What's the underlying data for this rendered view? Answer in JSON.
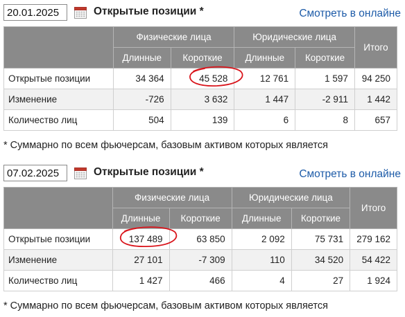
{
  "sections": [
    {
      "date": "20.01.2025",
      "title": "Открытые позиции *",
      "link": "Смотреть в онлайне",
      "headers": {
        "individuals": "Физические лица",
        "legal": "Юридические лица",
        "total": "Итого",
        "long": "Длинные",
        "short": "Короткие"
      },
      "rows": [
        {
          "label": "Открытые позиции",
          "values": [
            "34 364",
            "45 528",
            "12 761",
            "1 597",
            "94 250"
          ]
        },
        {
          "label": "Изменение",
          "values": [
            "-726",
            "3 632",
            "1 447",
            "-2 911",
            "1 442"
          ]
        },
        {
          "label": "Количество лиц",
          "values": [
            "504",
            "139",
            "6",
            "8",
            "657"
          ]
        }
      ],
      "footnote": "* Суммарно по всем фьючерсам, базовым активом которых является",
      "highlight": {
        "row": 0,
        "col": 1,
        "color": "#d9141b"
      }
    },
    {
      "date": "07.02.2025",
      "title": "Открытые позиции *",
      "link": "Смотреть в онлайне",
      "headers": {
        "individuals": "Физические лица",
        "legal": "Юридические лица",
        "total": "Итого",
        "long": "Длинные",
        "short": "Короткие"
      },
      "rows": [
        {
          "label": "Открытые позиции",
          "values": [
            "137 489",
            "63 850",
            "2 092",
            "75 731",
            "279 162"
          ]
        },
        {
          "label": "Изменение",
          "values": [
            "27 101",
            "-7 309",
            "110",
            "34 520",
            "54 422"
          ]
        },
        {
          "label": "Количество лиц",
          "values": [
            "1 427",
            "466",
            "4",
            "27",
            "1 924"
          ]
        }
      ],
      "footnote": "* Суммарно по всем фьючерсам, базовым активом которых является",
      "highlight": {
        "row": 0,
        "col": 0,
        "color": "#d9141b"
      }
    }
  ]
}
